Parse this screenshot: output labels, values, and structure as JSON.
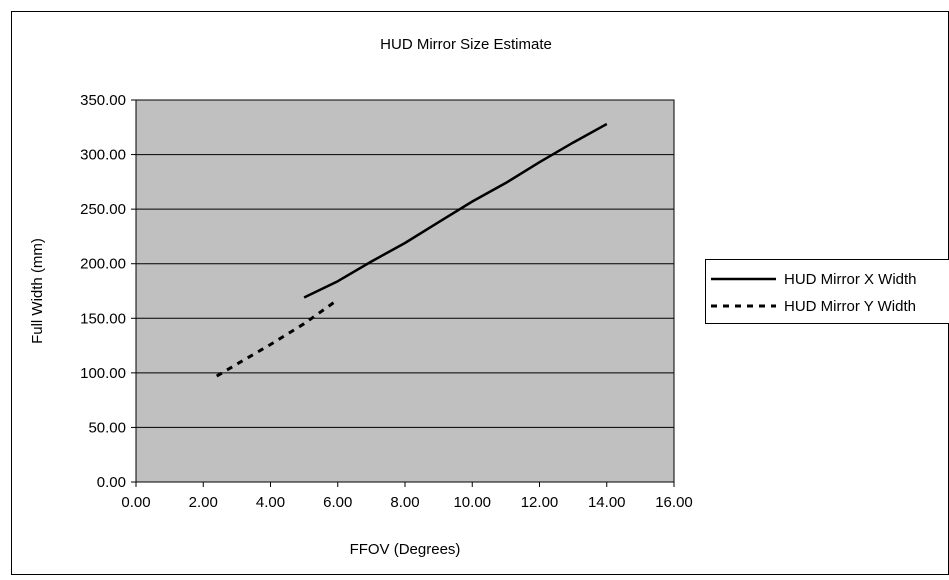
{
  "chart_data": {
    "type": "line",
    "title": "HUD Mirror Size Estimate",
    "xlabel": "FFOV (Degrees)",
    "ylabel": "Full Width (mm)",
    "xlim": [
      0,
      16
    ],
    "ylim": [
      0,
      350
    ],
    "x_ticks": [
      "0.00",
      "2.00",
      "4.00",
      "6.00",
      "8.00",
      "10.00",
      "12.00",
      "14.00",
      "16.00"
    ],
    "y_ticks": [
      "0.00",
      "50.00",
      "100.00",
      "150.00",
      "200.00",
      "250.00",
      "300.00",
      "350.00"
    ],
    "grid": "horizontal",
    "plot_background": "#c0c0c0",
    "legend_position": "right",
    "series": [
      {
        "name": "HUD Mirror X Width",
        "style": "solid",
        "color": "#000000",
        "x": [
          5,
          6,
          7,
          8,
          9,
          10,
          11,
          12,
          13,
          14
        ],
        "y": [
          169,
          184,
          202,
          219,
          238,
          257,
          274,
          293,
          311,
          328
        ]
      },
      {
        "name": "HUD Mirror Y Width",
        "style": "dashed",
        "color": "#000000",
        "x": [
          2.4,
          3,
          4,
          5,
          6
        ],
        "y": [
          97,
          108,
          126,
          145,
          167
        ]
      }
    ]
  }
}
